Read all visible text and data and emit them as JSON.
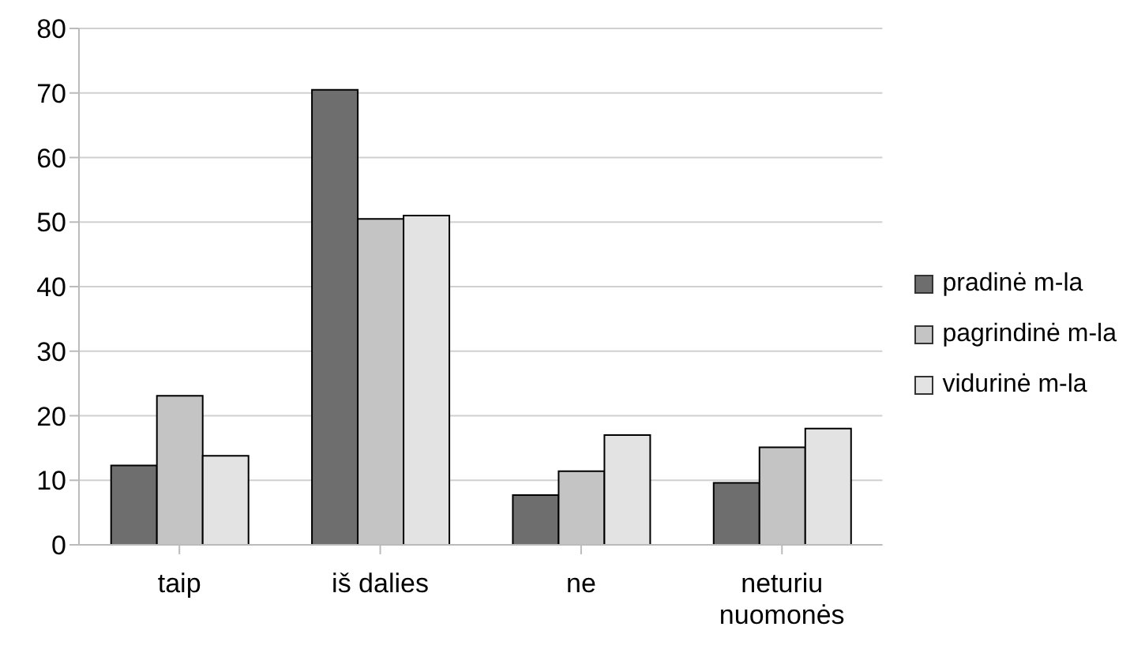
{
  "chart_data": {
    "type": "bar",
    "categories": [
      "taip",
      "iš dalies",
      "ne",
      "neturiu nuomonės"
    ],
    "series": [
      {
        "name": "pradinė m-la",
        "color": "#6e6e6e",
        "values": [
          12.3,
          70.5,
          7.7,
          9.6
        ]
      },
      {
        "name": "pagrindinė m-la",
        "color": "#c4c4c4",
        "values": [
          23.1,
          50.5,
          11.4,
          15.1
        ]
      },
      {
        "name": "vidurinė m-la",
        "color": "#e3e3e3",
        "values": [
          13.8,
          51,
          17,
          18
        ]
      }
    ],
    "ylim": [
      0,
      80
    ],
    "yticks": [
      0,
      10,
      20,
      30,
      40,
      50,
      60,
      70,
      80
    ],
    "grid": "y",
    "legend": "right"
  }
}
